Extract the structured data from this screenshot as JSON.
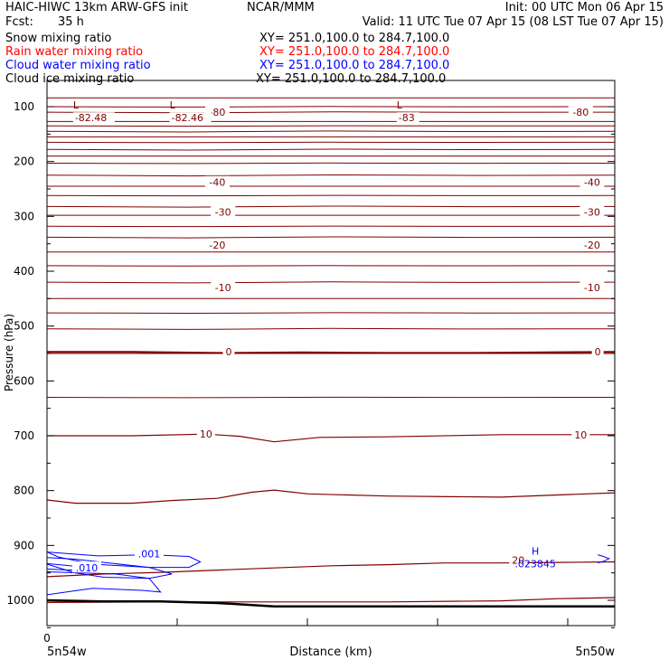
{
  "header": {
    "title": "HAIC-HIWC 13km ARW-GFS init",
    "org": "NCAR/MMM",
    "init": "Init: 00 UTC Mon 06 Apr 15",
    "fcst_label": "Fcst:",
    "fcst_value": "35 h",
    "valid": "Valid: 11 UTC Tue 07 Apr 15 (08 LST Tue 07 Apr 15)"
  },
  "fields": [
    {
      "name": "Snow mixing ratio",
      "xy": "XY= 251.0,100.0 to 284.7,100.0",
      "color": "#000000"
    },
    {
      "name": "Rain water mixing ratio",
      "xy": "XY= 251.0,100.0 to 284.7,100.0",
      "color": "#ff0000"
    },
    {
      "name": "Cloud water mixing ratio",
      "xy": "XY= 251.0,100.0 to 284.7,100.0",
      "color": "#0000ff"
    },
    {
      "name": "Cloud ice mixing ratio",
      "xy": "XY= 251.0,100.0 to 284.7,100.0",
      "color": "#000000"
    }
  ],
  "chart_data": {
    "type": "line",
    "xlabel": "Distance (km)",
    "ylabel": "Pressure (hPa)",
    "x_tick_label": "0",
    "x_end_labels": [
      "5n54w",
      "5n50w"
    ],
    "y_ticks": [
      100,
      200,
      300,
      400,
      500,
      600,
      700,
      800,
      900,
      1000
    ],
    "ylim": [
      1050,
      75
    ],
    "y_scale": "linear, inverted",
    "temperature_color": "#800000",
    "cloud_color": "#0000ff",
    "ground_color": "#000000",
    "temperature_labels": [
      {
        "text": "-80",
        "x": 0.3,
        "p": 110
      },
      {
        "text": "-80",
        "x": 0.94,
        "p": 110
      },
      {
        "text": "-40",
        "x": 0.3,
        "p": 238
      },
      {
        "text": "-40",
        "x": 0.96,
        "p": 238
      },
      {
        "text": "-30",
        "x": 0.31,
        "p": 292
      },
      {
        "text": "-30",
        "x": 0.96,
        "p": 292
      },
      {
        "text": "-20",
        "x": 0.3,
        "p": 352
      },
      {
        "text": "-20",
        "x": 0.96,
        "p": 352
      },
      {
        "text": "-10",
        "x": 0.31,
        "p": 430
      },
      {
        "text": "-10",
        "x": 0.96,
        "p": 430
      },
      {
        "text": "0",
        "x": 0.32,
        "p": 547
      },
      {
        "text": "0",
        "x": 0.97,
        "p": 547
      },
      {
        "text": "10",
        "x": 0.28,
        "p": 697
      },
      {
        "text": "10",
        "x": 0.94,
        "p": 698
      },
      {
        "text": "20",
        "x": 0.83,
        "p": 927
      }
    ],
    "low_markers": [
      {
        "letter": "L",
        "value": "-82.48",
        "x": 0.03,
        "p": 102
      },
      {
        "letter": "L",
        "value": "-82.46",
        "x": 0.2,
        "p": 102
      },
      {
        "letter": "L",
        "value": "-83",
        "x": 0.6,
        "p": 102
      }
    ],
    "high_marker": {
      "letter": "H",
      "value": ".023845",
      "x": 0.86,
      "p": 922
    },
    "cloud_labels": [
      {
        "text": ".001",
        "x": 0.18,
        "p": 915
      },
      {
        "text": ".010",
        "x": 0.07,
        "p": 941
      }
    ],
    "isentrope_levels": [
      84,
      100,
      110,
      127,
      135,
      145,
      155,
      165,
      178,
      190,
      203,
      225,
      245,
      262,
      282,
      298,
      318,
      338,
      365,
      390,
      420,
      450,
      476,
      505,
      550,
      630
    ],
    "contours": [
      {
        "x": [
          0,
          0.15,
          0.3,
          0.45,
          0.6,
          0.75,
          1.0
        ],
        "p": [
          547,
          547,
          549,
          548,
          549,
          549,
          547
        ]
      },
      {
        "x": [
          0,
          0.15,
          0.28,
          0.34,
          0.4,
          0.48,
          0.6,
          0.8,
          1.0
        ],
        "p": [
          700,
          700,
          697,
          701,
          711,
          703,
          702,
          698,
          698
        ]
      },
      {
        "x": [
          0,
          0.05,
          0.15,
          0.22,
          0.3,
          0.36,
          0.4,
          0.46,
          0.6,
          0.8,
          1.0
        ],
        "p": [
          817,
          823,
          823,
          818,
          814,
          803,
          799,
          806,
          810,
          812,
          804
        ]
      },
      {
        "x": [
          0,
          0.1,
          0.2,
          0.3,
          0.4,
          0.5,
          0.6,
          0.7,
          0.8,
          0.9,
          1.0
        ],
        "p": [
          957,
          952,
          949,
          945,
          941,
          937,
          935,
          932,
          932,
          931,
          930
        ]
      },
      {
        "x": [
          0,
          0.2,
          0.4,
          0.6,
          0.8,
          0.9,
          1.0
        ],
        "p": [
          1004,
          1003,
          1003,
          1003,
          1001,
          997,
          995
        ]
      }
    ],
    "ground": {
      "x": [
        0,
        0.1,
        0.2,
        0.3,
        0.4,
        0.6,
        0.8,
        1.0
      ],
      "p": [
        1000,
        1002,
        1002,
        1005,
        1011,
        1011,
        1011,
        1011
      ]
    },
    "cloud_contours": [
      {
        "x": [
          0,
          0.09,
          0.18,
          0.25,
          0.27,
          0.25,
          0.18,
          0.08,
          0.02,
          0
        ],
        "p": [
          912,
          919,
          917,
          920,
          930,
          940,
          940,
          934,
          921,
          912
        ]
      },
      {
        "x": [
          0,
          0.05,
          0.1,
          0.18,
          0.22,
          0.18,
          0.1,
          0.05,
          0
        ],
        "p": [
          922,
          925,
          931,
          940,
          952,
          960,
          958,
          950,
          934
        ]
      },
      {
        "x": [
          0,
          0.12,
          0.18,
          0.2,
          0.17,
          0.08,
          0
        ],
        "p": [
          948,
          952,
          960,
          985,
          982,
          978,
          990
        ]
      },
      {
        "x": [
          0,
          0.04,
          0.08,
          0.04,
          0
        ],
        "p": [
          933,
          937,
          940,
          945,
          943
        ]
      }
    ],
    "high_contour": {
      "x": [
        0.97,
        0.98,
        0.99,
        0.98,
        0.97
      ],
      "p": [
        917,
        920,
        924,
        929,
        932
      ]
    }
  }
}
